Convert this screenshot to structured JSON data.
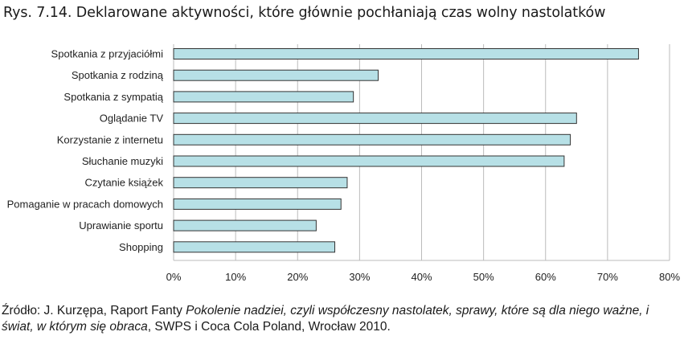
{
  "title": "Rys. 7.14. Deklarowane aktywności, które głównie pochłaniają czas wolny nastolatków",
  "source": {
    "prefix": "Źródło: J. Kurzępa, Raport Fanty ",
    "italic": "Pokolenie nadziei, czyli współczesny nastolatek, sprawy, które są dla niego ważne, i świat, w którym się obraca",
    "suffix": ", SWPS i Coca Cola Poland, Wrocław 2010."
  },
  "chart_data": {
    "type": "bar",
    "orientation": "horizontal",
    "categories": [
      "Spotkania z przyjaciółmi",
      "Spotkania z rodziną",
      "Spotkania z sympatią",
      "Oglądanie TV",
      "Korzystanie z internetu",
      "Słuchanie muzyki",
      "Czytanie książek",
      "Pomaganie w pracach domowych",
      "Uprawianie sportu",
      "Shopping"
    ],
    "values": [
      75,
      33,
      29,
      65,
      64,
      63,
      28,
      27,
      23,
      26
    ],
    "xlim": [
      0,
      80
    ],
    "xticks": [
      "0%",
      "10%",
      "20%",
      "30%",
      "40%",
      "50%",
      "60%",
      "70%",
      "80%"
    ],
    "grid": true,
    "bar_color": "#b7e0e6",
    "bar_edge_color": "#333333",
    "grid_color": "#bbbbbb"
  }
}
